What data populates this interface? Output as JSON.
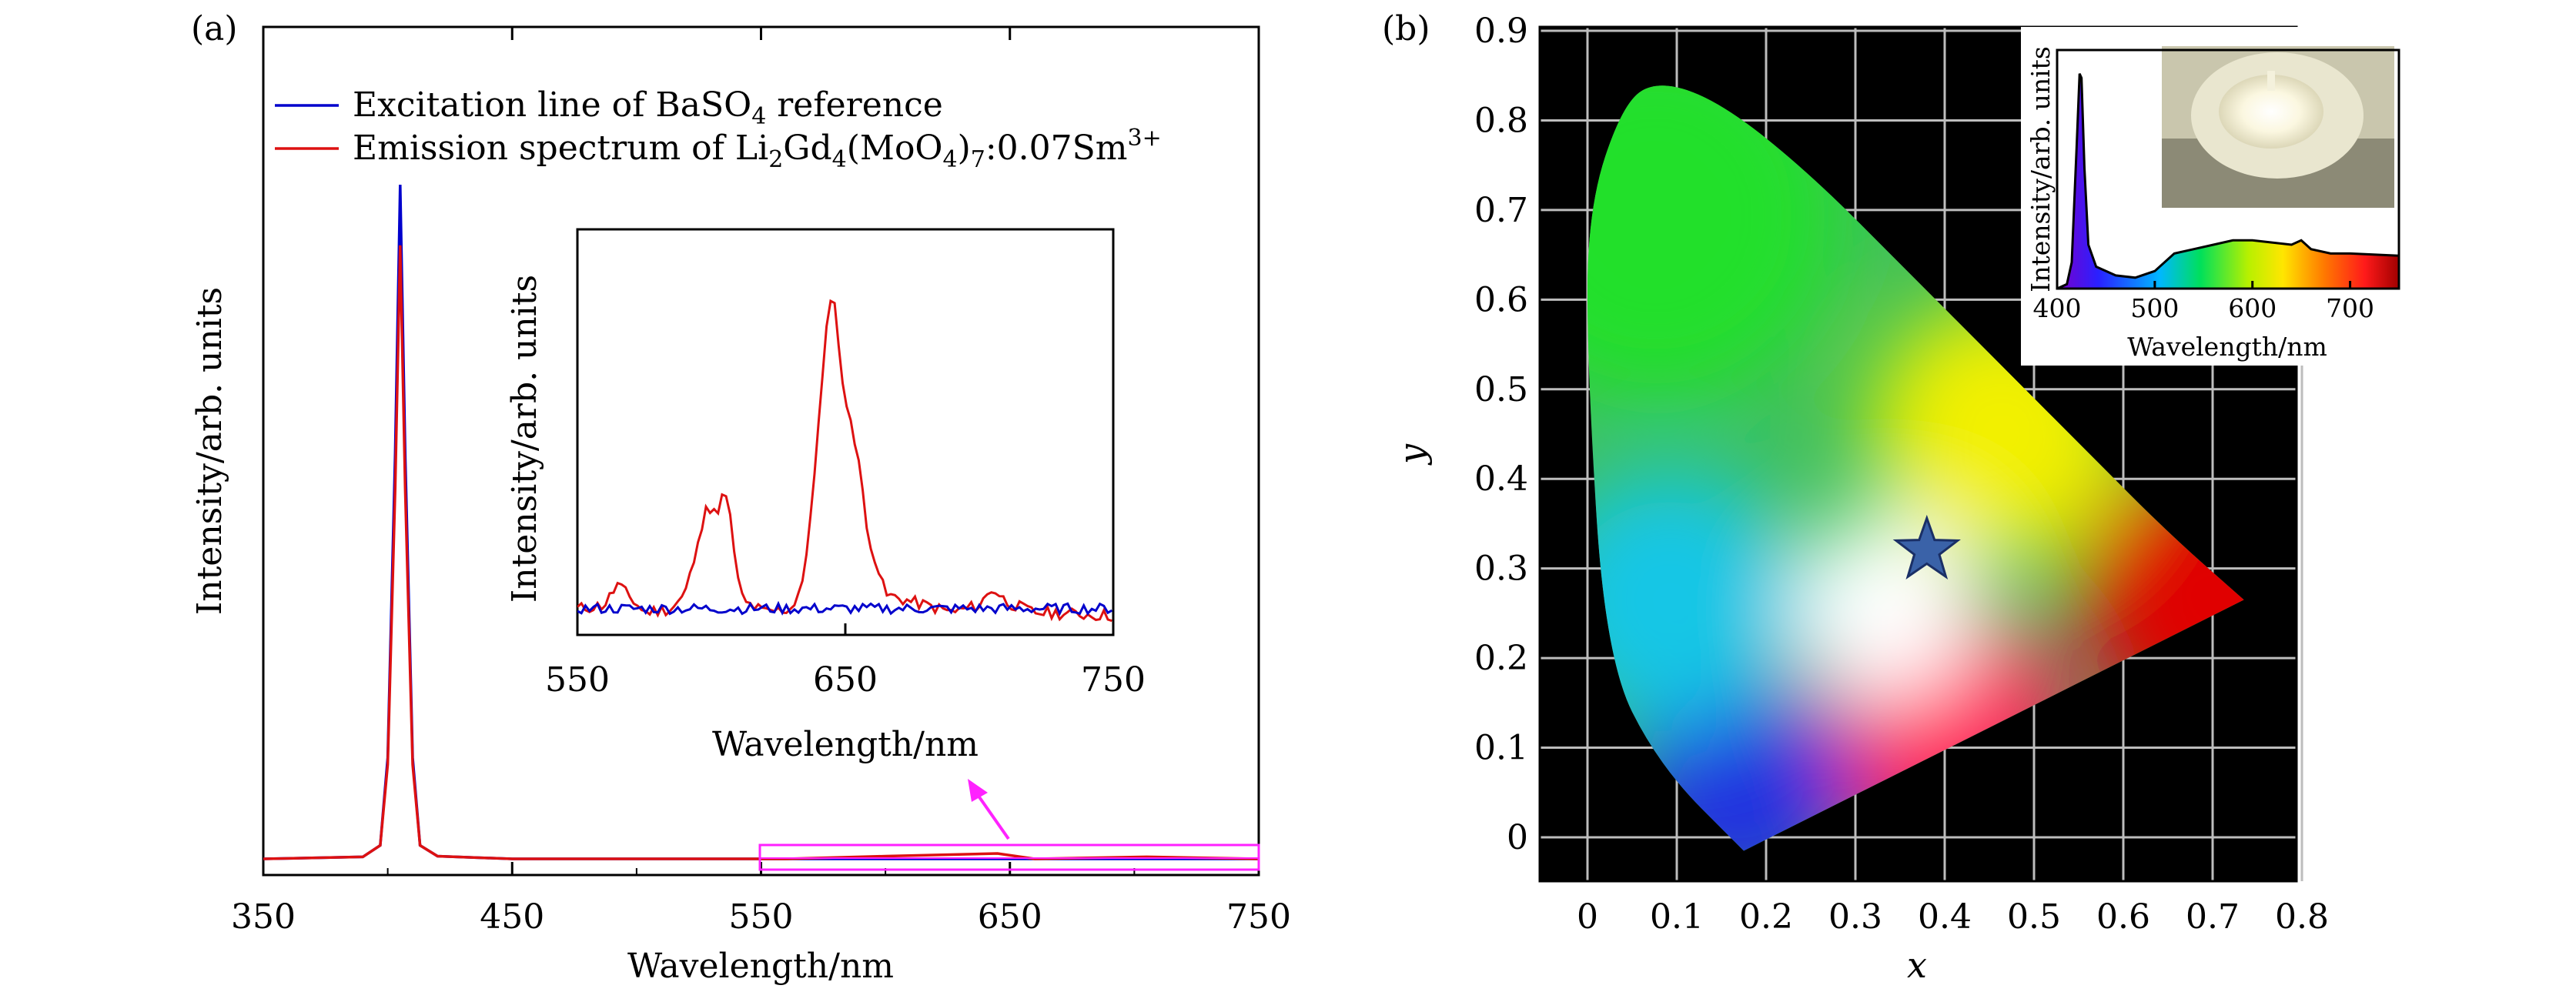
{
  "chart_data": [
    {
      "panel_label": "(a)",
      "type": "line",
      "xlabel": "Wavelength/nm",
      "ylabel": "Intensity/arb. units",
      "xlim": [
        350,
        750
      ],
      "xticks": [
        "350",
        "450",
        "550",
        "650",
        "750"
      ],
      "ylim": [
        0,
        1
      ],
      "legend": {
        "placement": "top-left",
        "entries": [
          {
            "prefix": "Excitation line of BaSO",
            "sub": "4",
            "suffix": " reference",
            "color": "#0000cc"
          },
          {
            "prefix": "Emission spectrum of Li",
            "sub1": "2",
            "mid1": "Gd",
            "sub2": "4",
            "mid2": "(MoO",
            "sub3": "4",
            "mid3": ")",
            "sub4": "7",
            "mid4": ":0.07Sm",
            "sup": "3+",
            "color": "#dd1111"
          }
        ]
      },
      "series": [
        {
          "name": "Excitation line of BaSO4 reference",
          "color": "#0000cc",
          "x": [
            350,
            390,
            397,
            400,
            403,
            405,
            407,
            410,
            413,
            420,
            450,
            750
          ],
          "y": [
            0.0,
            0.003,
            0.02,
            0.15,
            0.6,
            1.0,
            0.6,
            0.15,
            0.02,
            0.004,
            0.0,
            0.0
          ]
        },
        {
          "name": "Emission spectrum of Li2Gd4(MoO4)7:0.07Sm3+",
          "color": "#dd1111",
          "x": [
            350,
            390,
            397,
            400,
            403,
            405,
            407,
            410,
            413,
            420,
            450,
            560,
            600,
            645,
            660,
            705,
            750
          ],
          "y": [
            0.0,
            0.003,
            0.02,
            0.14,
            0.55,
            0.91,
            0.55,
            0.14,
            0.02,
            0.004,
            0.0,
            0.0,
            0.004,
            0.008,
            0.0,
            0.003,
            0.0
          ]
        }
      ],
      "inset": {
        "xlabel": "Wavelength/nm",
        "ylabel": "Intensity/arb. units",
        "xlim": [
          550,
          750
        ],
        "xticks": [
          "550",
          "650",
          "750"
        ],
        "ylim": [
          0,
          1
        ],
        "series": [
          {
            "name": "Emission",
            "color": "#dd1111",
            "x": [
              550,
              560,
              565,
              570,
              575,
              585,
              590,
              595,
              598,
              600,
              602,
              605,
              607,
              610,
              612,
              620,
              630,
              635,
              640,
              643,
              645,
              647,
              650,
              652,
              655,
              658,
              665,
              690,
              700,
              705,
              710,
              720,
              750
            ],
            "y": [
              0.02,
              0.03,
              0.09,
              0.05,
              0.01,
              0.02,
              0.06,
              0.2,
              0.33,
              0.29,
              0.3,
              0.36,
              0.28,
              0.1,
              0.04,
              0.01,
              0.02,
              0.12,
              0.55,
              0.82,
              0.96,
              0.83,
              0.6,
              0.57,
              0.45,
              0.25,
              0.06,
              0.01,
              0.03,
              0.08,
              0.04,
              0.01,
              0.0
            ]
          },
          {
            "name": "Excitation",
            "color": "#0000cc",
            "x": [
              550,
              750
            ],
            "y": [
              0.02,
              0.02
            ]
          }
        ]
      }
    },
    {
      "panel_label": "(b)",
      "type": "scatter",
      "xlabel": "x",
      "ylabel": "y",
      "xlim": [
        -0.05,
        0.8
      ],
      "ylim": [
        -0.03,
        0.9
      ],
      "xticks": [
        "0",
        "0.1",
        "0.2",
        "0.3",
        "0.4",
        "0.5",
        "0.6",
        "0.7",
        "0.8"
      ],
      "yticks": [
        "0",
        "0.1",
        "0.2",
        "0.3",
        "0.4",
        "0.5",
        "0.6",
        "0.7",
        "0.8",
        "0.9"
      ],
      "grid": true,
      "point": {
        "x": 0.38,
        "y": 0.32,
        "marker": "star",
        "color": "#3a62a8"
      },
      "locus": [
        [
          0.175,
          -0.015
        ],
        [
          0.08,
          0.08
        ],
        [
          0.02,
          0.2
        ],
        [
          0.0,
          0.52
        ],
        [
          0.0,
          0.7
        ],
        [
          0.04,
          0.82
        ],
        [
          0.08,
          0.845
        ],
        [
          0.15,
          0.82
        ],
        [
          0.25,
          0.74
        ],
        [
          0.36,
          0.63
        ],
        [
          0.46,
          0.53
        ],
        [
          0.56,
          0.43
        ],
        [
          0.65,
          0.34
        ],
        [
          0.735,
          0.265
        ]
      ],
      "inset": {
        "xlabel": "Wavelength/nm",
        "ylabel": "Intensity/arb. units",
        "xlim": [
          400,
          750
        ],
        "xticks": [
          "400",
          "500",
          "600",
          "700"
        ],
        "spectrum": {
          "x": [
            400,
            410,
            415,
            420,
            423,
            425,
            428,
            432,
            440,
            460,
            480,
            500,
            520,
            540,
            560,
            580,
            600,
            620,
            640,
            650,
            660,
            680,
            700,
            750
          ],
          "y": [
            0.0,
            0.02,
            0.12,
            0.65,
            0.98,
            0.96,
            0.55,
            0.2,
            0.1,
            0.06,
            0.05,
            0.08,
            0.16,
            0.18,
            0.2,
            0.22,
            0.22,
            0.21,
            0.2,
            0.22,
            0.18,
            0.16,
            0.16,
            0.15
          ]
        }
      }
    }
  ]
}
